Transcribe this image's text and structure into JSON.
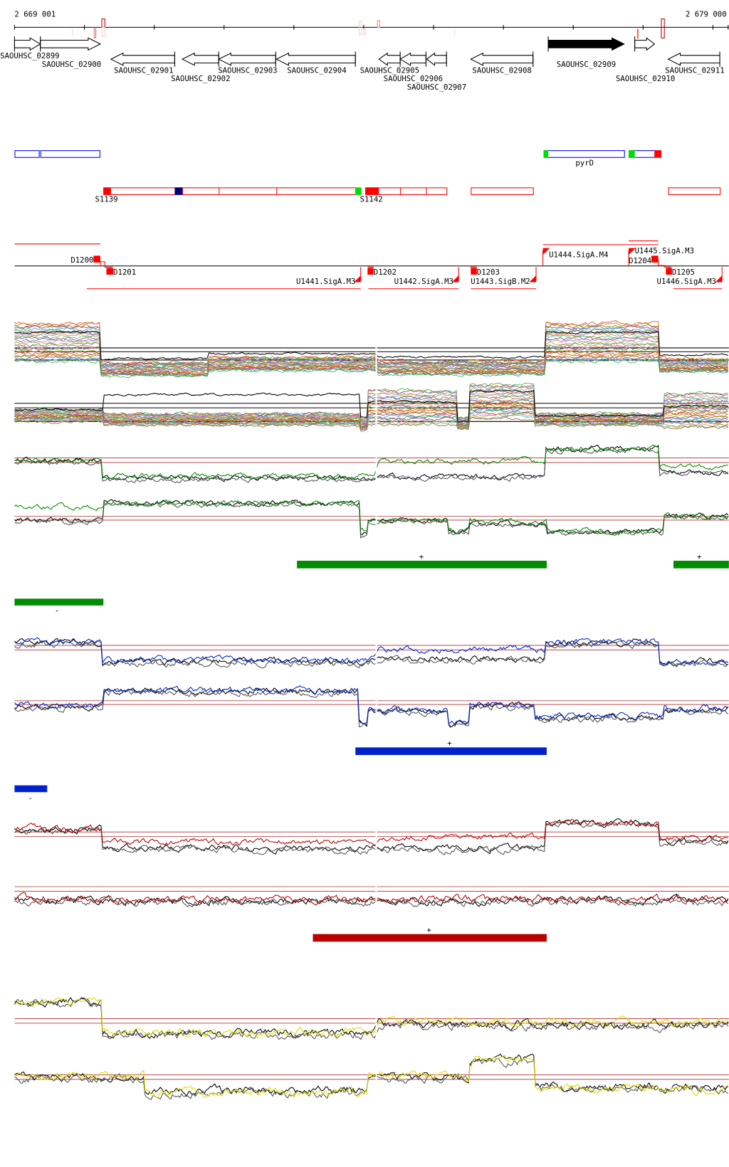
{
  "ruler": {
    "start_label": "2 669 001",
    "end_label": "2 679 000"
  },
  "genes": [
    {
      "name": "SAOUHSC_02899",
      "strand": "+",
      "filled": false
    },
    {
      "name": "SAOUHSC_02900",
      "strand": "+",
      "filled": false
    },
    {
      "name": "SAOUHSC_02901",
      "strand": "-",
      "filled": false
    },
    {
      "name": "SAOUHSC_02902",
      "strand": "-",
      "filled": false
    },
    {
      "name": "SAOUHSC_02903",
      "strand": "-",
      "filled": false
    },
    {
      "name": "SAOUHSC_02904",
      "strand": "-",
      "filled": false
    },
    {
      "name": "SAOUHSC_02905",
      "strand": "-",
      "filled": false
    },
    {
      "name": "SAOUHSC_02906",
      "strand": "-",
      "filled": false
    },
    {
      "name": "SAOUHSC_02907",
      "strand": "-",
      "filled": false
    },
    {
      "name": "SAOUHSC_02908",
      "strand": "-",
      "filled": false
    },
    {
      "name": "SAOUHSC_02909",
      "strand": "+",
      "filled": true
    },
    {
      "name": "SAOUHSC_02910",
      "strand": "+",
      "filled": false
    },
    {
      "name": "SAOUHSC_02911",
      "strand": "-",
      "filled": false
    }
  ],
  "operons": {
    "pyrD_label": "pyrD",
    "s1139_label": "S1139",
    "s1142_label": "S1142"
  },
  "segments": {
    "d1200": "D1200",
    "d1201": "D1201",
    "u1441": "U1441.SigA.M3",
    "d1202": "D1202",
    "u1442": "U1442.SigA.M3",
    "d1203": "D1203",
    "u1443": "U1443.SigB.M2",
    "u1444": "U1444.SigA.M4",
    "u1445": "U1445.SigA.M3",
    "d1204": "D1204",
    "d1205": "D1205",
    "u1446": "U1446.SigA.M3"
  },
  "strand_labels": {
    "green_plus_1": "+",
    "green_plus_2": "+",
    "green_minus": "-",
    "blue_plus": "+",
    "blue_minus": "-",
    "red_plus": "+"
  },
  "colors": {
    "gene_outline": "#000000",
    "operon_blue": "#0000ff",
    "operon_red": "#ff0000",
    "start_green": "#00dd00",
    "navy": "#000080",
    "track_green": "#008c00",
    "track_blue": "#0022cc",
    "track_red": "#bb0000",
    "track_yellow": "#dddd00",
    "reference_line": "#b03030"
  }
}
